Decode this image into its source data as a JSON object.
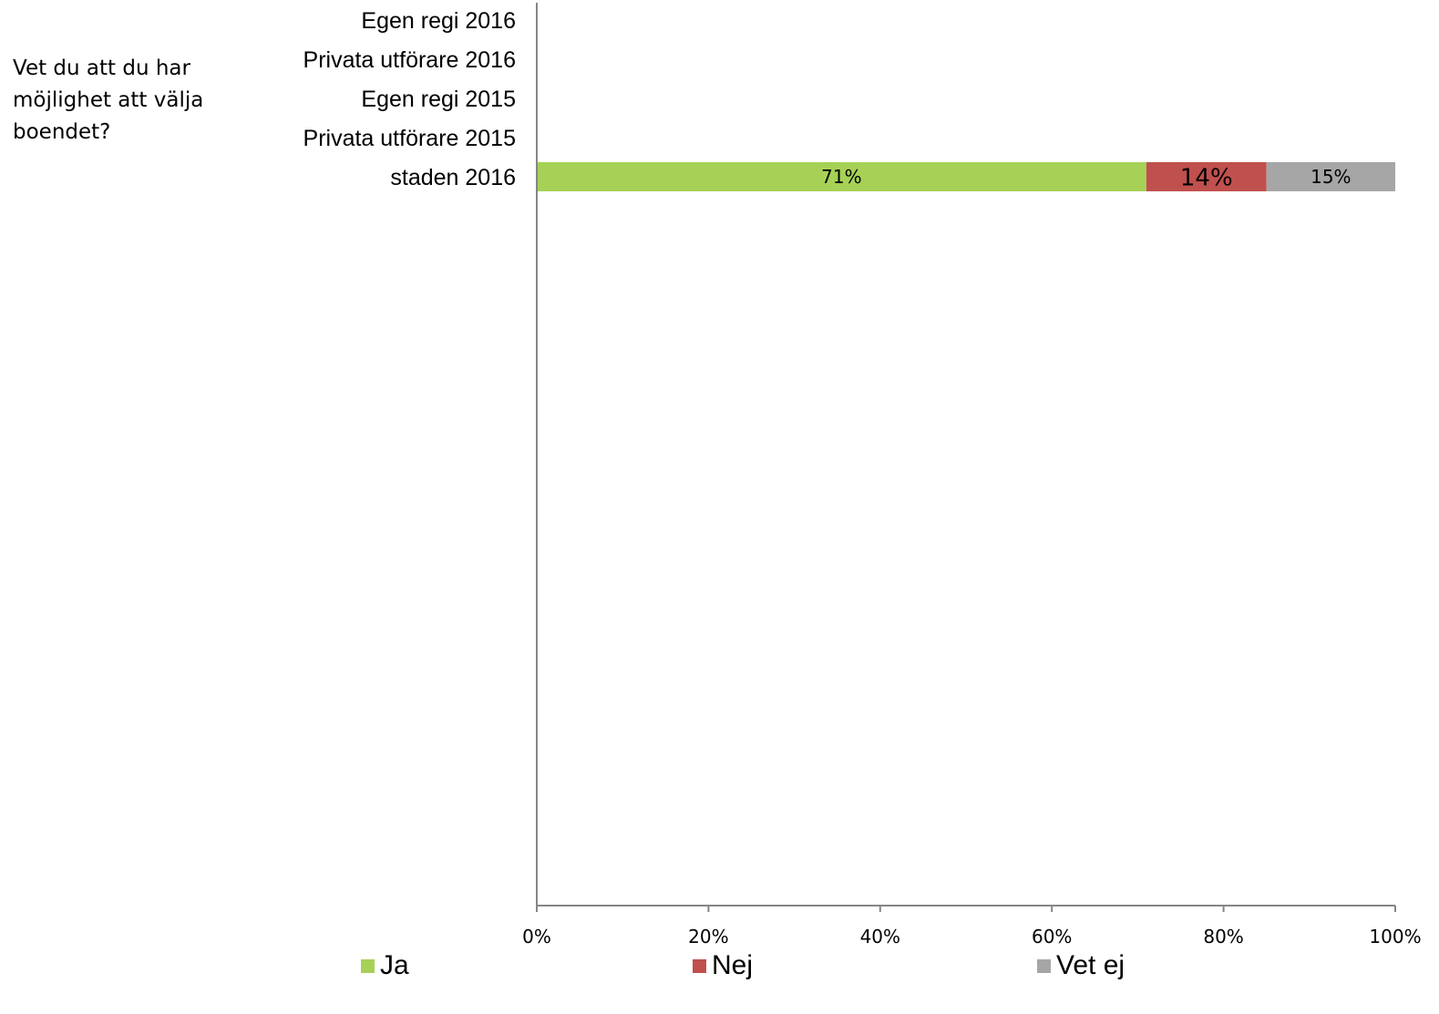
{
  "question": "Vet du att du har möjlighet att välja boendet?",
  "chart_data": {
    "type": "bar",
    "orientation": "horizontal",
    "stacked": true,
    "categories": [
      "Egen regi 2016",
      "Privata utförare 2016",
      "Egen regi 2015",
      "Privata utförare 2015",
      "staden 2016"
    ],
    "series": [
      {
        "name": "Ja",
        "color": "#A6D156",
        "values": [
          null,
          null,
          null,
          null,
          71
        ]
      },
      {
        "name": "Nej",
        "color": "#C0504D",
        "values": [
          null,
          null,
          null,
          null,
          14
        ]
      },
      {
        "name": "Vet ej",
        "color": "#A6A6A6",
        "values": [
          null,
          null,
          null,
          null,
          15
        ]
      }
    ],
    "data_labels": [
      {
        "category": "staden 2016",
        "series": "Ja",
        "text": "71%"
      },
      {
        "category": "staden 2016",
        "series": "Nej",
        "text": "14%"
      },
      {
        "category": "staden 2016",
        "series": "Vet ej",
        "text": "15%"
      }
    ],
    "x_ticks": [
      "0%",
      "20%",
      "40%",
      "60%",
      "80%",
      "100%"
    ],
    "xlim": [
      0,
      100
    ],
    "grid": false,
    "legend_position": "bottom"
  }
}
